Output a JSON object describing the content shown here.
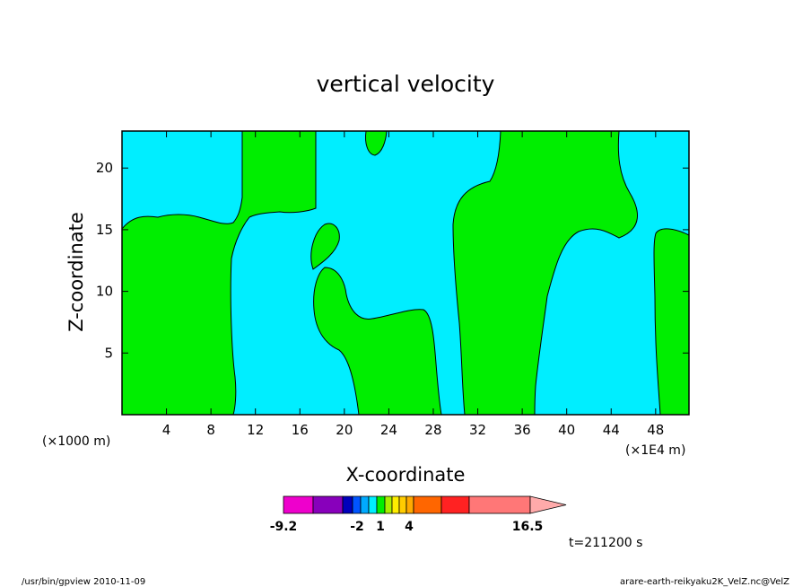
{
  "chart_data": {
    "type": "heatmap",
    "title": "vertical velocity",
    "xlabel": "X-coordinate",
    "ylabel": "Z-coordinate",
    "x_unit_left": "(×1000 m)",
    "x_unit_right": "(×1E4 m)",
    "xlim": [
      0,
      51
    ],
    "ylim": [
      0,
      23
    ],
    "x_ticks": [
      4,
      8,
      12,
      16,
      20,
      24,
      28,
      32,
      36,
      40,
      44,
      48
    ],
    "y_ticks": [
      5,
      10,
      15,
      20
    ],
    "regions": [
      {
        "color": "#00eeff",
        "range": "0 to 1",
        "fill": "background"
      },
      {
        "color": "#00ee00",
        "range": "-1 to 0"
      }
    ],
    "colorbar": {
      "labels": [
        "-9.2",
        "-2",
        "1",
        "4",
        "16.5"
      ],
      "colors": [
        "#ee00cc",
        "#8800bb",
        "#0000bb",
        "#0055ff",
        "#00aaff",
        "#00eeff",
        "#00ee00",
        "#aaee00",
        "#ffee00",
        "#ffcc00",
        "#ffaa00",
        "#ff6600",
        "#ff2222",
        "#ff7777",
        "#ffaaaa"
      ]
    },
    "time_label": "t=211200 s"
  },
  "footer": {
    "left": "/usr/bin/gpview  2010-11-09",
    "right": "arare-earth-reikyaku2K_VelZ.nc@VelZ"
  }
}
